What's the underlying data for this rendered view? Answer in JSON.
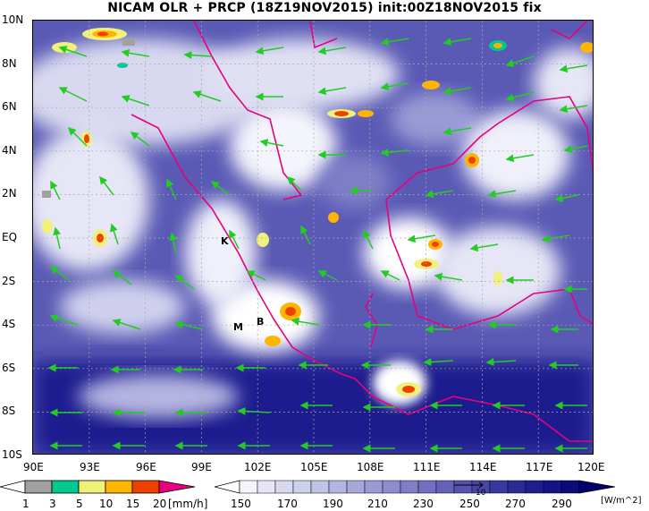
{
  "title": "NICAM OLR + PRCP (18Z19NOV2015) init:00Z18NOV2015 fix",
  "lat_labels": [
    "10N",
    "8N",
    "6N",
    "4N",
    "2N",
    "EQ",
    "2S",
    "4S",
    "6S",
    "8S",
    "10S"
  ],
  "lon_labels": [
    "90E",
    "93E",
    "96E",
    "99E",
    "102E",
    "105E",
    "108E",
    "111E",
    "114E",
    "117E",
    "120E"
  ],
  "place_markers": [
    "K",
    "M",
    "B"
  ],
  "precip_colorbar": {
    "unit": "[mm/h]",
    "ticks": [
      "1",
      "3",
      "5",
      "10",
      "15",
      "20"
    ],
    "colors": [
      "#a0a0a0",
      "#00c890",
      "#f0f07a",
      "#ffb400",
      "#f04000",
      "#e6007e"
    ]
  },
  "olr_colorbar": {
    "unit": "[W/m^2]",
    "ticks": [
      "150",
      "170",
      "190",
      "210",
      "230",
      "250",
      "270",
      "290"
    ],
    "colors": [
      "#ffffff",
      "#e6e6f6",
      "#cfcfee",
      "#b5b5e2",
      "#9a9ad6",
      "#7f7fc8",
      "#6262b9",
      "#4646a8",
      "#2a2a96",
      "#141486",
      "#000070"
    ]
  },
  "vector_reference": "10"
}
